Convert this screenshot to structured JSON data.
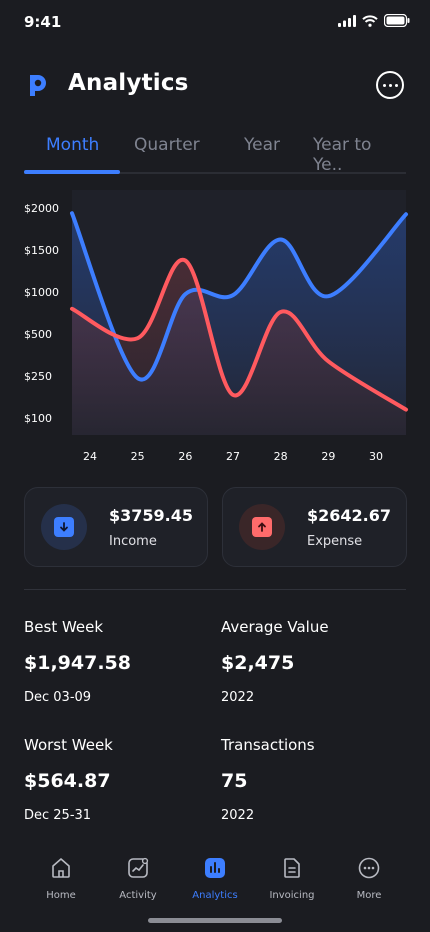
{
  "status": {
    "time": "9:41"
  },
  "header": {
    "title": "Analytics"
  },
  "tabs": [
    "Month",
    "Quarter",
    "Year",
    "Year to Ye.."
  ],
  "chart_data": {
    "type": "area",
    "y_tick_labels": [
      "$2000",
      "$1500",
      "$1000",
      "$500",
      "$250",
      "$100"
    ],
    "categories": [
      "24",
      "25",
      "26",
      "27",
      "28",
      "29",
      "30"
    ],
    "series": [
      {
        "color": "#3d7eff",
        "values": [
          1950,
          380,
          1180,
          1170,
          1700,
          1160,
          1940
        ]
      },
      {
        "color": "#ff5a5f",
        "values": [
          1040,
          760,
          1500,
          220,
          1010,
          540,
          80
        ]
      }
    ],
    "legend_placement": "none",
    "grid": false
  },
  "cards": [
    {
      "amount": "$3759.45",
      "label": "Income",
      "color": "#3d7eff"
    },
    {
      "amount": "$2642.67",
      "label": "Expense",
      "color": "#ff6b6b"
    }
  ],
  "stats": [
    {
      "title": "Best Week",
      "value": "$1,947.58",
      "sub": "Dec 03-09"
    },
    {
      "title": "Average Value",
      "value": "$2,475",
      "sub": "2022"
    },
    {
      "title": "Worst Week",
      "value": "$564.87",
      "sub": "Dec 25-31"
    },
    {
      "title": "Transactions",
      "value": "75",
      "sub": "2022"
    }
  ],
  "nav": [
    {
      "label": "Home",
      "icon": "home-icon"
    },
    {
      "label": "Activity",
      "icon": "activity-icon"
    },
    {
      "label": "Analytics",
      "icon": "analytics-icon",
      "active": true
    },
    {
      "label": "Invoicing",
      "icon": "invoice-icon"
    },
    {
      "label": "More",
      "icon": "more-icon"
    }
  ]
}
